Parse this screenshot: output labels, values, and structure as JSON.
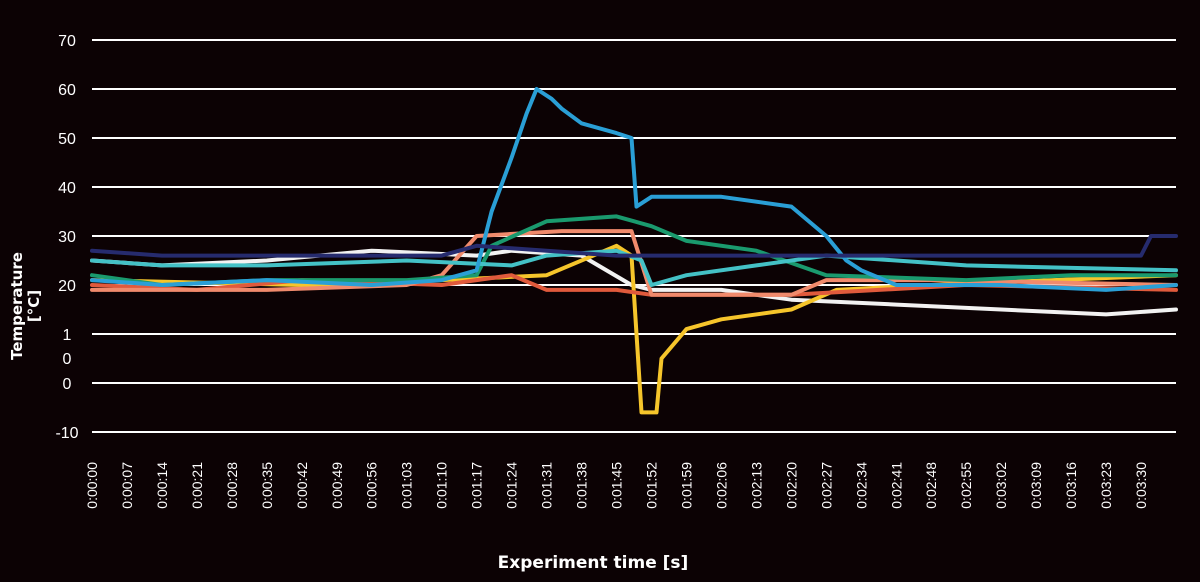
{
  "chart_data": {
    "type": "line",
    "title": "",
    "xlabel": "Experiment time [s]",
    "ylabel": "Temperature [°C]",
    "ylim": [
      -10,
      70
    ],
    "grid": true,
    "legend": "none",
    "y_tick_labels": [
      "70",
      "60",
      "50",
      "40",
      "30",
      "20",
      "1\n0",
      "0",
      "-10"
    ],
    "x_tick_labels": [
      "0:00:00",
      "0:00:07",
      "0:00:14",
      "0:00:21",
      "0:00:28",
      "0:00:35",
      "0:00:42",
      "0:00:49",
      "0:00:56",
      "0:01:03",
      "0:01:10",
      "0:01:17",
      "0:01:24",
      "0:01:31",
      "0:01:38",
      "0:01:45",
      "0:01:52",
      "0:01:59",
      "0:02:06",
      "0:02:13",
      "0:02:20",
      "0:02:27",
      "0:02:34",
      "0:02:41",
      "0:02:48",
      "0:02:55",
      "0:03:02",
      "0:03:09",
      "0:03:16",
      "0:03:23",
      "0:03:30"
    ],
    "series": [
      {
        "color": "#f2f2f2",
        "points": [
          [
            0,
            25
          ],
          [
            14,
            24
          ],
          [
            35,
            25
          ],
          [
            56,
            27
          ],
          [
            77,
            26
          ],
          [
            84,
            27
          ],
          [
            98,
            26
          ],
          [
            108,
            20
          ],
          [
            112,
            19
          ],
          [
            126,
            19
          ],
          [
            140,
            17
          ],
          [
            161,
            16
          ],
          [
            182,
            15
          ],
          [
            203,
            14
          ],
          [
            217,
            15
          ]
        ]
      },
      {
        "color": "#f6c52b",
        "points": [
          [
            0,
            21
          ],
          [
            42,
            20
          ],
          [
            70,
            21
          ],
          [
            91,
            22
          ],
          [
            105,
            28
          ],
          [
            108,
            26
          ],
          [
            110,
            -6
          ],
          [
            113,
            -6
          ],
          [
            114,
            5
          ],
          [
            119,
            11
          ],
          [
            126,
            13
          ],
          [
            140,
            15
          ],
          [
            149,
            19
          ],
          [
            168,
            20
          ],
          [
            217,
            22
          ]
        ]
      },
      {
        "color": "#e05a3c",
        "points": [
          [
            0,
            20
          ],
          [
            21,
            19
          ],
          [
            42,
            21
          ],
          [
            70,
            20
          ],
          [
            84,
            22
          ],
          [
            91,
            19
          ],
          [
            105,
            19
          ],
          [
            112,
            18
          ],
          [
            140,
            18
          ],
          [
            175,
            20
          ],
          [
            217,
            19
          ]
        ]
      },
      {
        "color": "#f08a6c",
        "points": [
          [
            0,
            19
          ],
          [
            35,
            19
          ],
          [
            63,
            20
          ],
          [
            70,
            22
          ],
          [
            77,
            30
          ],
          [
            94,
            31
          ],
          [
            108,
            31
          ],
          [
            112,
            18
          ],
          [
            140,
            18
          ],
          [
            147,
            21
          ],
          [
            168,
            21
          ],
          [
            217,
            20
          ]
        ]
      },
      {
        "color": "#1a9a6e",
        "points": [
          [
            0,
            22
          ],
          [
            14,
            20
          ],
          [
            35,
            21
          ],
          [
            63,
            21
          ],
          [
            77,
            22
          ],
          [
            80,
            28
          ],
          [
            91,
            33
          ],
          [
            105,
            34
          ],
          [
            112,
            32
          ],
          [
            119,
            29
          ],
          [
            133,
            27
          ],
          [
            147,
            22
          ],
          [
            175,
            21
          ],
          [
            196,
            22
          ],
          [
            217,
            22
          ]
        ]
      },
      {
        "color": "#44c1c6",
        "points": [
          [
            0,
            25
          ],
          [
            14,
            24
          ],
          [
            35,
            24
          ],
          [
            63,
            25
          ],
          [
            84,
            24
          ],
          [
            91,
            26
          ],
          [
            105,
            27
          ],
          [
            110,
            25
          ],
          [
            112,
            20
          ],
          [
            119,
            22
          ],
          [
            133,
            24
          ],
          [
            147,
            26
          ],
          [
            161,
            25
          ],
          [
            175,
            24
          ],
          [
            217,
            23
          ]
        ]
      },
      {
        "color": "#2a9fd6",
        "points": [
          [
            0,
            21
          ],
          [
            14,
            20
          ],
          [
            35,
            21
          ],
          [
            56,
            20
          ],
          [
            70,
            21
          ],
          [
            77,
            23
          ],
          [
            80,
            35
          ],
          [
            84,
            46
          ],
          [
            87,
            55
          ],
          [
            89,
            60
          ],
          [
            92,
            58
          ],
          [
            94,
            56
          ],
          [
            98,
            53
          ],
          [
            105,
            51
          ],
          [
            108,
            50
          ],
          [
            109,
            36
          ],
          [
            112,
            38
          ],
          [
            126,
            38
          ],
          [
            140,
            36
          ],
          [
            147,
            30
          ],
          [
            151,
            25
          ],
          [
            154,
            23
          ],
          [
            161,
            20
          ],
          [
            182,
            20
          ],
          [
            203,
            19
          ],
          [
            217,
            20
          ]
        ]
      },
      {
        "color": "#262b6e",
        "points": [
          [
            0,
            27
          ],
          [
            14,
            26
          ],
          [
            35,
            26
          ],
          [
            56,
            26
          ],
          [
            70,
            26
          ],
          [
            77,
            28
          ],
          [
            91,
            27
          ],
          [
            105,
            26
          ],
          [
            119,
            26
          ],
          [
            147,
            26
          ],
          [
            168,
            26
          ],
          [
            182,
            26
          ],
          [
            196,
            26
          ],
          [
            210,
            26
          ],
          [
            212,
            30
          ],
          [
            217,
            30
          ]
        ]
      }
    ]
  }
}
